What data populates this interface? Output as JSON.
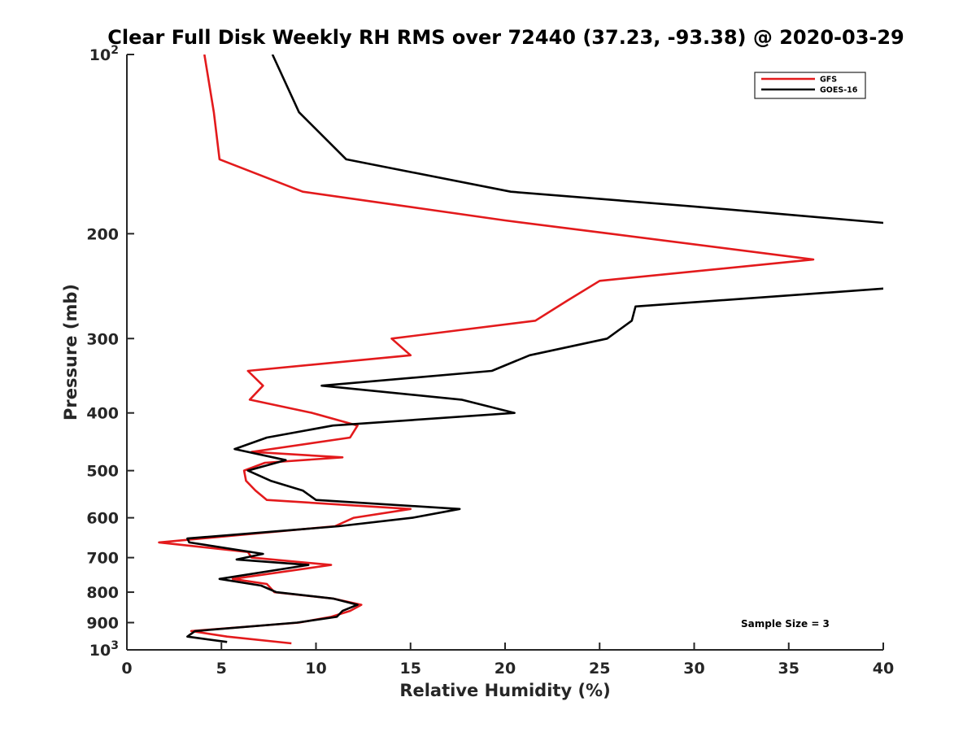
{
  "chart_data": {
    "type": "line",
    "title": "Clear Full Disk Weekly RH RMS over 72440 (37.23, -93.38) @ 2020-03-29",
    "xlabel": "Relative Humidity (%)",
    "ylabel": "Pressure (mb)",
    "xlim": [
      0,
      40
    ],
    "ylim": [
      100,
      1000
    ],
    "y_scale": "log",
    "y_reversed": true,
    "grid": false,
    "legend_position": "top-right",
    "x_ticks": [
      0,
      5,
      10,
      15,
      20,
      25,
      30,
      35,
      40
    ],
    "x_tick_labels": [
      "0",
      "5",
      "10",
      "15",
      "20",
      "25",
      "30",
      "35",
      "40"
    ],
    "y_ticks": [
      100,
      200,
      300,
      400,
      500,
      600,
      700,
      800,
      900,
      1000
    ],
    "y_tick_labels": [
      {
        "base": "10",
        "exp": "2"
      },
      {
        "base": "200",
        "exp": ""
      },
      {
        "base": "300",
        "exp": ""
      },
      {
        "base": "400",
        "exp": ""
      },
      {
        "base": "500",
        "exp": ""
      },
      {
        "base": "600",
        "exp": ""
      },
      {
        "base": "700",
        "exp": ""
      },
      {
        "base": "800",
        "exp": ""
      },
      {
        "base": "900",
        "exp": ""
      },
      {
        "base": "10",
        "exp": "3"
      }
    ],
    "annotation": "Sample Size = 3",
    "series": [
      {
        "name": "GFS",
        "color": "#e31a1c",
        "points": [
          [
            4.1,
            100
          ],
          [
            4.6,
            125
          ],
          [
            4.9,
            150
          ],
          [
            9.3,
            170
          ],
          [
            20.0,
            190
          ],
          [
            25.6,
            200
          ],
          [
            36.3,
            221
          ],
          [
            25.0,
            240
          ],
          [
            23.3,
            259
          ],
          [
            21.6,
            280
          ],
          [
            14.0,
            300
          ],
          [
            15.0,
            320
          ],
          [
            6.4,
            340
          ],
          [
            7.2,
            360
          ],
          [
            6.5,
            380
          ],
          [
            9.8,
            400
          ],
          [
            12.2,
            420
          ],
          [
            11.8,
            440
          ],
          [
            6.6,
            465
          ],
          [
            11.4,
            475
          ],
          [
            7.3,
            485
          ],
          [
            6.2,
            500
          ],
          [
            6.3,
            520
          ],
          [
            6.8,
            540
          ],
          [
            7.4,
            560
          ],
          [
            15.0,
            580
          ],
          [
            12.0,
            600
          ],
          [
            11.0,
            620
          ],
          [
            1.7,
            660
          ],
          [
            6.4,
            685
          ],
          [
            6.6,
            700
          ],
          [
            10.8,
            720
          ],
          [
            5.6,
            760
          ],
          [
            7.4,
            775
          ],
          [
            7.8,
            800
          ],
          [
            10.9,
            820
          ],
          [
            12.4,
            840
          ],
          [
            11.8,
            860
          ],
          [
            10.8,
            880
          ],
          [
            9.1,
            900
          ],
          [
            3.4,
            930
          ],
          [
            5.3,
            950
          ],
          [
            8.7,
            975
          ]
        ]
      },
      {
        "name": "GOES-16",
        "color": "#000000",
        "points": [
          [
            7.7,
            100
          ],
          [
            9.1,
            125
          ],
          [
            11.6,
            150
          ],
          [
            20.3,
            170
          ],
          [
            30.0,
            180
          ],
          [
            40.2,
            192
          ],
          [
            40.2,
            247
          ],
          [
            26.9,
            265
          ],
          [
            26.7,
            280
          ],
          [
            25.4,
            300
          ],
          [
            21.3,
            320
          ],
          [
            19.3,
            340
          ],
          [
            10.3,
            360
          ],
          [
            17.7,
            380
          ],
          [
            20.5,
            400
          ],
          [
            10.9,
            420
          ],
          [
            7.4,
            440
          ],
          [
            5.7,
            460
          ],
          [
            8.4,
            480
          ],
          [
            6.4,
            500
          ],
          [
            7.6,
            520
          ],
          [
            9.3,
            540
          ],
          [
            10.0,
            560
          ],
          [
            17.6,
            580
          ],
          [
            15.1,
            600
          ],
          [
            11.2,
            620
          ],
          [
            3.2,
            650
          ],
          [
            3.3,
            660
          ],
          [
            7.2,
            690
          ],
          [
            5.8,
            705
          ],
          [
            9.6,
            720
          ],
          [
            4.9,
            760
          ],
          [
            7.1,
            780
          ],
          [
            7.9,
            800
          ],
          [
            10.9,
            820
          ],
          [
            12.2,
            840
          ],
          [
            11.4,
            860
          ],
          [
            11.1,
            880
          ],
          [
            9.0,
            900
          ],
          [
            3.6,
            930
          ],
          [
            3.2,
            950
          ],
          [
            5.3,
            970
          ]
        ]
      }
    ]
  }
}
